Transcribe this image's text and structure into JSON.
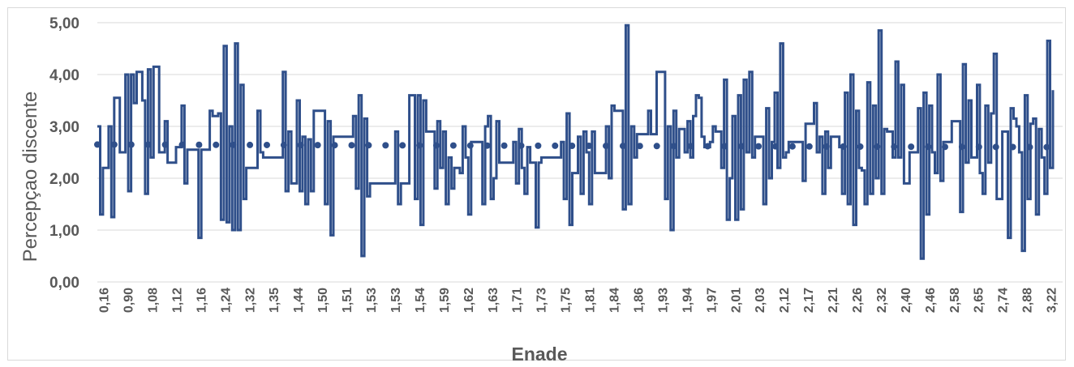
{
  "chart_data": {
    "type": "line",
    "title": "",
    "xlabel": "Enade",
    "ylabel": "Percepçao discente",
    "ylim": [
      0,
      5
    ],
    "y_ticks": [
      "0,00",
      "1,00",
      "2,00",
      "3,00",
      "4,00",
      "5,00"
    ],
    "x_ticks": [
      "0,16",
      "0,90",
      "1,08",
      "1,12",
      "1,16",
      "1,24",
      "1,32",
      "1,35",
      "1,44",
      "1,50",
      "1,51",
      "1,53",
      "1,53",
      "1,54",
      "1,59",
      "1,62",
      "1,63",
      "1,71",
      "1,73",
      "1,75",
      "1,81",
      "1,84",
      "1,86",
      "1,93",
      "1,94",
      "1,97",
      "2,01",
      "2,03",
      "2,12",
      "2,17",
      "2,21",
      "2,26",
      "2,32",
      "2,40",
      "2,46",
      "2,58",
      "2,65",
      "2,74",
      "2,88",
      "3,22"
    ],
    "grid": "horizontal",
    "legend": "none",
    "series": [
      {
        "style": "solid",
        "color": "#2f4f8a",
        "values": [
          3.0,
          1.3,
          2.2,
          2.2,
          3.0,
          1.25,
          3.55,
          3.55,
          2.5,
          2.5,
          4.0,
          1.75,
          4.0,
          3.45,
          4.05,
          4.05,
          3.5,
          1.7,
          4.1,
          2.4,
          4.15,
          4.15,
          2.5,
          2.5,
          3.1,
          2.3,
          2.3,
          2.3,
          2.6,
          2.6,
          3.4,
          1.9,
          2.55,
          2.55,
          2.55,
          2.55,
          0.85,
          2.55,
          2.55,
          2.55,
          3.3,
          3.2,
          3.2,
          3.25,
          1.2,
          4.55,
          1.15,
          3.0,
          1.0,
          4.6,
          1.0,
          3.8,
          1.6,
          2.2,
          2.2,
          2.2,
          2.2,
          3.3,
          2.5,
          2.4,
          2.4,
          2.4,
          2.4,
          2.4,
          2.4,
          2.4,
          4.05,
          1.75,
          2.9,
          1.9,
          1.9,
          3.5,
          1.75,
          2.8,
          1.5,
          2.75,
          1.75,
          3.3,
          3.3,
          3.3,
          3.3,
          1.5,
          3.1,
          0.9,
          2.8,
          2.8,
          2.8,
          2.8,
          2.8,
          2.8,
          2.8,
          3.2,
          1.8,
          3.6,
          0.5,
          3.15,
          1.65,
          1.9,
          1.9,
          1.9,
          1.9,
          1.9,
          1.9,
          1.9,
          1.9,
          1.9,
          2.9,
          1.5,
          1.9,
          1.9,
          1.9,
          3.6,
          3.6,
          1.6,
          3.6,
          1.1,
          3.5,
          2.9,
          2.9,
          2.9,
          1.8,
          3.1,
          2.2,
          2.9,
          1.5,
          2.4,
          1.8,
          2.2,
          2.2,
          2.1,
          3.0,
          2.4,
          1.3,
          2.7,
          2.7,
          2.7,
          2.7,
          1.5,
          3.0,
          3.2,
          1.6,
          2.0,
          3.1,
          2.3,
          2.3,
          2.3,
          2.3,
          2.3,
          2.7,
          1.9,
          2.95,
          2.2,
          1.7,
          2.6,
          2.3,
          2.3,
          1.05,
          2.3,
          2.4,
          2.4,
          2.4,
          2.4,
          2.4,
          2.4,
          2.4,
          2.7,
          1.6,
          3.25,
          1.1,
          2.1,
          2.1,
          2.8,
          1.7,
          2.9,
          2.5,
          1.5,
          2.9,
          2.1,
          2.1,
          2.1,
          2.1,
          3.0,
          2.0,
          3.4,
          3.3,
          3.3,
          3.3,
          1.4,
          4.95,
          1.5,
          3.0,
          2.4,
          2.85,
          2.85,
          2.85,
          2.85,
          3.3,
          2.85,
          2.85,
          4.05,
          4.05,
          4.05,
          1.6,
          3.0,
          1.0,
          3.3,
          2.4,
          2.95,
          2.95,
          2.5,
          3.1,
          2.4,
          3.2,
          3.6,
          3.55,
          2.8,
          2.6,
          2.6,
          2.7,
          3.0,
          2.9,
          2.9,
          2.2,
          3.9,
          1.2,
          2.0,
          3.2,
          1.2,
          3.6,
          1.4,
          3.9,
          2.5,
          4.05,
          2.4,
          2.8,
          2.8,
          2.8,
          1.5,
          3.35,
          2.0,
          2.7,
          3.65,
          2.2,
          4.6,
          2.4,
          2.5,
          2.7,
          2.7,
          2.7,
          2.7,
          2.7,
          1.95,
          3.05,
          3.05,
          3.05,
          3.45,
          2.5,
          2.8,
          1.7,
          2.9,
          2.2,
          2.8,
          2.8,
          2.8,
          2.6,
          1.7,
          3.65,
          1.5,
          4.0,
          1.1,
          3.3,
          2.2,
          2.15,
          1.5,
          3.85,
          1.7,
          3.4,
          2.0,
          4.85,
          1.7,
          2.95,
          2.9,
          2.9,
          2.4,
          4.25,
          2.4,
          3.8,
          1.9,
          1.9,
          2.5,
          2.5,
          2.5,
          3.35,
          0.45,
          3.65,
          1.3,
          3.4,
          2.5,
          2.1,
          4.0,
          1.95,
          2.7,
          2.7,
          2.7,
          3.1,
          3.1,
          3.1,
          1.35,
          4.2,
          2.3,
          3.5,
          2.4,
          2.4,
          3.8,
          2.1,
          1.7,
          3.4,
          2.3,
          3.25,
          4.4,
          1.6,
          1.6,
          2.9,
          2.9,
          0.85,
          3.35,
          3.15,
          3.0,
          2.5,
          0.6,
          3.6,
          1.6,
          3.05,
          3.15,
          1.3,
          2.95,
          2.4,
          1.7,
          4.65,
          2.2,
          3.7
        ]
      },
      {
        "style": "dotted",
        "color": "#2f4f8a",
        "values": [
          2.65,
          2.6
        ]
      }
    ]
  }
}
